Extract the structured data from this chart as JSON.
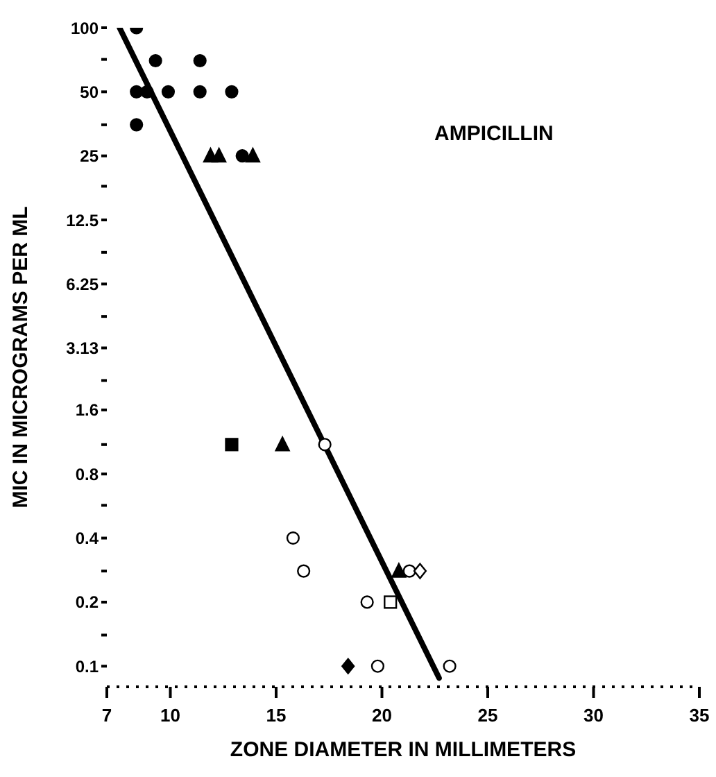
{
  "chart_data": {
    "type": "scatter",
    "xlabel": "ZONE DIAMETER IN MILLIMETERS",
    "ylabel": "MIC IN MICROGRAMS PER ML",
    "annotations": [
      "AMPICILLIN"
    ],
    "log": "y",
    "grid": false,
    "legend": false,
    "xlim": [
      7,
      35
    ],
    "xticks": [
      7,
      10,
      15,
      20,
      25,
      30,
      35
    ],
    "ylim": [
      0.08,
      100
    ],
    "yticks": [
      100,
      {
        "value": 71,
        "label": null
      },
      50,
      {
        "value": 35,
        "label": null
      },
      25,
      {
        "value": 18,
        "label": null
      },
      12.5,
      {
        "value": 8.8,
        "label": null
      },
      6.25,
      {
        "value": 4.4,
        "label": null
      },
      3.13,
      {
        "value": 2.2,
        "label": null
      },
      1.6,
      {
        "value": 1.1,
        "label": null
      },
      0.8,
      {
        "value": 0.57,
        "label": null
      },
      0.4,
      {
        "value": 0.28,
        "label": null
      },
      0.2,
      {
        "value": 0.14,
        "label": null
      },
      0.1
    ],
    "series": [
      {
        "marker": "circle",
        "color": "#000000",
        "x": [
          8.4,
          9.3,
          11.4,
          8.4,
          8.9,
          9.9,
          11.4,
          12.9,
          8.4,
          13.4
        ],
        "values": [
          100,
          70,
          70,
          50,
          50,
          50,
          50,
          50,
          35,
          25
        ]
      },
      {
        "marker": "triangle",
        "color": "#000000",
        "x": [
          11.9,
          12.3,
          13.9,
          15.3,
          20.8
        ],
        "values": [
          25,
          25,
          25,
          1.1,
          0.28
        ]
      },
      {
        "marker": "square",
        "color": "#000000",
        "x": [
          12.9
        ],
        "values": [
          1.1
        ]
      },
      {
        "marker": "diamond",
        "color": "#000000",
        "x": [
          18.4
        ],
        "values": [
          0.1
        ]
      },
      {
        "marker": "circle",
        "color": "#ffffff",
        "x": [
          15.8,
          16.3,
          21.3,
          19.3,
          19.8,
          23.2,
          17.3
        ],
        "values": [
          0.4,
          0.28,
          0.28,
          0.2,
          0.1,
          0.1,
          1.1
        ]
      },
      {
        "marker": "square",
        "color": "#ffffff",
        "x": [
          20.4
        ],
        "values": [
          0.2
        ]
      },
      {
        "marker": "diamond",
        "color": "#ffffff",
        "x": [
          21.8
        ],
        "values": [
          0.28
        ]
      },
      {
        "type": "line",
        "marker": "none",
        "color": "#000000",
        "x": [
          7.6,
          22.7
        ],
        "values": [
          100,
          0.088
        ]
      }
    ]
  }
}
